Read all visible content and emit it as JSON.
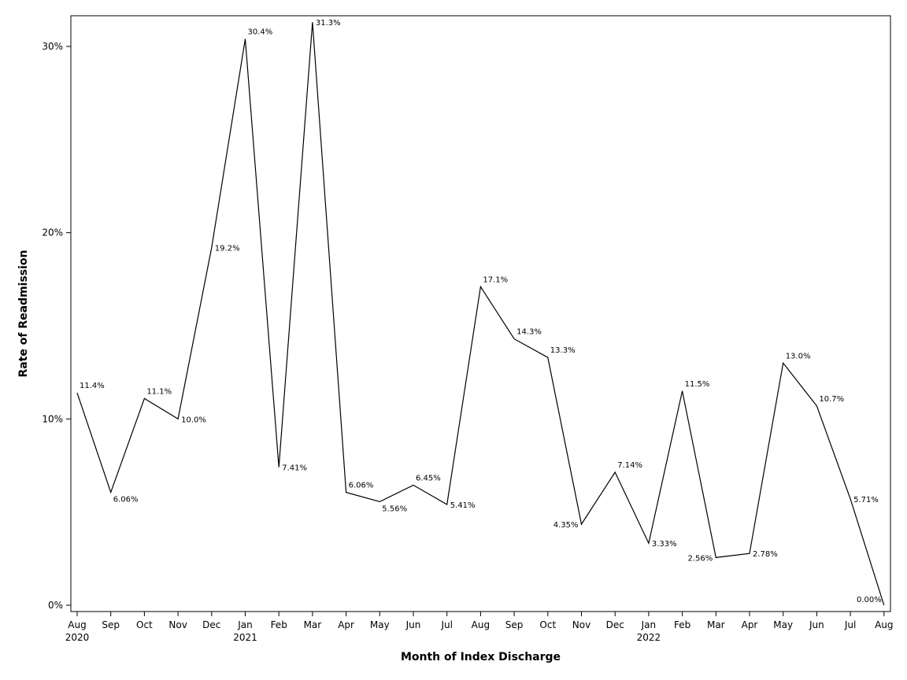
{
  "chart_data": {
    "type": "line",
    "title": "",
    "xlabel": "Month of Index Discharge",
    "ylabel": "Rate of Readmission",
    "ylim": [
      0,
      32
    ],
    "yticks": [
      {
        "value": 0,
        "label": "0%"
      },
      {
        "value": 10,
        "label": "10%"
      },
      {
        "value": 20,
        "label": "20%"
      },
      {
        "value": 30,
        "label": "30%"
      }
    ],
    "categories": [
      "Aug",
      "Sep",
      "Oct",
      "Nov",
      "Dec",
      "Jan",
      "Feb",
      "Mar",
      "Apr",
      "May",
      "Jun",
      "Jul",
      "Aug",
      "Sep",
      "Oct",
      "Nov",
      "Dec",
      "Jan",
      "Feb",
      "Mar",
      "Apr",
      "May",
      "Jun",
      "Jul",
      "Aug"
    ],
    "year_labels": [
      "2020",
      "",
      "",
      "",
      "",
      "2021",
      "",
      "",
      "",
      "",
      "",
      "",
      "",
      "",
      "",
      "",
      "",
      "2022",
      "",
      "",
      "",
      "",
      "",
      "",
      ""
    ],
    "values": [
      11.4,
      6.06,
      11.1,
      10.0,
      19.2,
      30.4,
      7.41,
      31.3,
      6.06,
      5.56,
      6.45,
      5.41,
      17.1,
      14.3,
      13.3,
      4.35,
      7.14,
      3.33,
      11.5,
      2.56,
      2.78,
      13.0,
      10.7,
      5.71,
      0.0
    ],
    "data_labels": [
      "11.4%",
      "6.06%",
      "11.1%",
      "10.0%",
      "19.2%",
      "30.4%",
      "7.41%",
      "31.3%",
      "6.06%",
      "5.56%",
      "6.45%",
      "5.41%",
      "17.1%",
      "14.3%",
      "13.3%",
      "4.35%",
      "7.14%",
      "3.33%",
      "11.5%",
      "2.56%",
      "2.78%",
      "13.0%",
      "10.7%",
      "5.71%",
      "0.00%"
    ],
    "label_positions": [
      "above-right",
      "below-right",
      "above-right",
      "right",
      "right",
      "above-right",
      "right",
      "right",
      "above-right",
      "below-right",
      "above-right",
      "right",
      "above-right",
      "above-right",
      "above-right",
      "left",
      "above-right",
      "right",
      "above-right",
      "left",
      "right",
      "above-right",
      "above-right",
      "right",
      "above-left"
    ],
    "grid": false,
    "legend": "none"
  }
}
